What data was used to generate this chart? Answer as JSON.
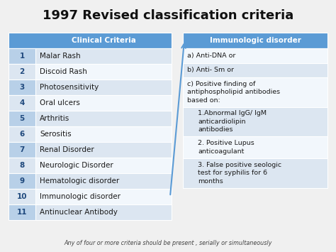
{
  "title": "1997 Revised classification criteria",
  "title_fontsize": 13,
  "background_color": "#f0f0f0",
  "table_header_color": "#5b9bd5",
  "table_row_even_color": "#dce6f1",
  "table_row_odd_color": "#f2f7fc",
  "num_col_even_color": "#b8d0e8",
  "num_col_odd_color": "#dce6f1",
  "right_header_color": "#5b9bd5",
  "right_row_colors": [
    "#f2f7fc",
    "#dce6f1",
    "#f2f7fc",
    "#dce6f1",
    "#f2f7fc",
    "#dce6f1"
  ],
  "clinical_numbers": [
    "1",
    "2",
    "3",
    "4",
    "5",
    "6",
    "7",
    "8",
    "9",
    "10",
    "11"
  ],
  "clinical_criteria": [
    "Malar Rash",
    "Discoid Rash",
    "Photosensitivity",
    "Oral ulcers",
    "Arthritis",
    "Serositis",
    "Renal Disorder",
    "Neurologic Disorder",
    "Hematologic disorder",
    "Immunologic disorder",
    "Antinuclear Antibody"
  ],
  "immunologic_header": "Immunologic disorder",
  "immunologic_items": [
    {
      "text": "a) Anti-DNA or",
      "indent": 0,
      "lines": 1
    },
    {
      "text": "b) Anti- Sm or",
      "indent": 0,
      "lines": 1
    },
    {
      "text": "c) Positive finding of\nantiphospholipid antibodies\nbased on:",
      "indent": 0,
      "lines": 3
    },
    {
      "text": "1.Abnormal IgG/ IgM\nanticardiolipin\nantibodies",
      "indent": 1,
      "lines": 3
    },
    {
      "text": "2. Positive Lupus\nanticoagulant",
      "indent": 1,
      "lines": 2
    },
    {
      "text": "3. False positive seologic\ntest for syphilis for 6\nmonths",
      "indent": 1,
      "lines": 3
    }
  ],
  "footer_text": "Any of four or more criteria should be present , serially or simultaneously",
  "arrow_color": "#5b9bd5",
  "header_text_color": "#ffffff",
  "number_text_color": "#1f497d",
  "criteria_text_color": "#1a1a1a",
  "imm_text_color": "#1a1a1a"
}
